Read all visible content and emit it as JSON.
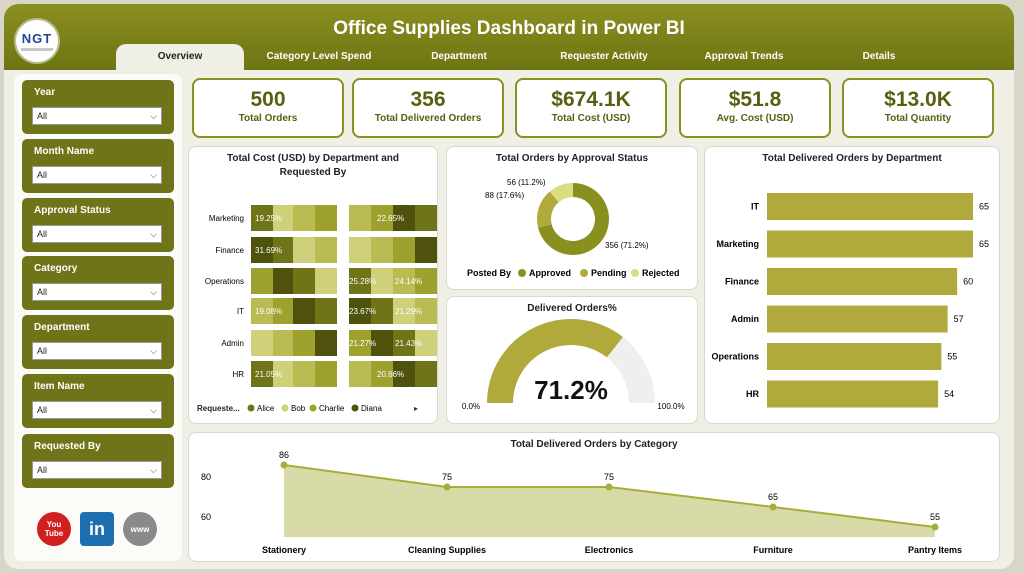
{
  "header": {
    "title": "Office Supplies Dashboard in Power BI",
    "logo_text": "NGT"
  },
  "tabs": [
    {
      "label": "Overview",
      "active": true
    },
    {
      "label": "Category Level Spend"
    },
    {
      "label": "Department"
    },
    {
      "label": "Requester Activity"
    },
    {
      "label": "Approval Trends"
    },
    {
      "label": "Details"
    }
  ],
  "filters": [
    {
      "label": "Year",
      "value": "All"
    },
    {
      "label": "Month Name",
      "value": "All"
    },
    {
      "label": "Approval Status",
      "value": "All"
    },
    {
      "label": "Category",
      "value": "All"
    },
    {
      "label": "Department",
      "value": "All"
    },
    {
      "label": "Item Name",
      "value": "All"
    },
    {
      "label": "Requested By",
      "value": "All"
    }
  ],
  "social": [
    {
      "icon": "youtube-icon",
      "text": "You Tube",
      "color": "#d02020"
    },
    {
      "icon": "linkedin-icon",
      "text": "in",
      "color": "#1d6fb0"
    },
    {
      "icon": "web-icon",
      "text": "www",
      "color": "#8a8a8a"
    }
  ],
  "kpis": [
    {
      "value": "500",
      "label": "Total Orders"
    },
    {
      "value": "356",
      "label": "Total Delivered Orders"
    },
    {
      "value": "$674.1K",
      "label": "Total Cost (USD)"
    },
    {
      "value": "$51.8",
      "label": "Avg. Cost (USD)"
    },
    {
      "value": "$13.0K",
      "label": "Total Quantity"
    }
  ],
  "colors": {
    "accent": "#8a9020",
    "dark": "#5f6410",
    "light": "#b0aa3c",
    "pale": "#d8dc8a",
    "area": "#d8dba8",
    "gauge_bg": "#efefef"
  },
  "charts": {
    "ribbon": {
      "title_line1": "Total Cost (USD) by Department and",
      "title_line2": "Requested By",
      "legend_label": "Requeste...",
      "legend": [
        "Alice",
        "Bob",
        "Charlie",
        "Diana"
      ],
      "legend_colors": [
        "#6f7418",
        "#cfd07a",
        "#9da22e",
        "#4e520c"
      ],
      "labels": [
        {
          "dept": "Marketing",
          "left": "19.25%",
          "right": "22.65%"
        },
        {
          "dept": "Finance",
          "left": "31.69%",
          "right": ""
        },
        {
          "dept": "Operations",
          "left": "",
          "right": "25.28%",
          "right2": "24.14%"
        },
        {
          "dept": "IT",
          "left": "19.08%",
          "right": "23.67%",
          "right2": "21.29%"
        },
        {
          "dept": "Admin",
          "left": "",
          "right": "21.27%",
          "right2": "21.43%"
        },
        {
          "dept": "HR",
          "left": "21.05%",
          "right": "20.66%"
        }
      ]
    },
    "donut": {
      "title": "Total Orders by Approval Status",
      "legend_title": "Posted By",
      "slices": [
        {
          "name": "Approved",
          "value": 356,
          "label": "356 (71.2%)",
          "color": "#8a9020"
        },
        {
          "name": "Pending",
          "value": 88,
          "label": "88 (17.6%)",
          "color": "#b0aa3c"
        },
        {
          "name": "Rejected",
          "value": 56,
          "label": "56 (11.2%)",
          "color": "#dcdd82"
        }
      ]
    },
    "gauge": {
      "title": "Delivered Orders%",
      "value": 71.2,
      "value_label": "71.2%",
      "min_label": "0.0%",
      "max_label": "100.0%"
    }
  },
  "chart_data": [
    {
      "type": "bar",
      "title": "Total Delivered Orders by Department",
      "categories": [
        "IT",
        "Marketing",
        "Finance",
        "Admin",
        "Operations",
        "HR"
      ],
      "values": [
        65,
        65,
        60,
        57,
        55,
        54
      ]
    },
    {
      "type": "area",
      "title": "Total Delivered Orders by Category",
      "categories": [
        "Stationery",
        "Cleaning Supplies",
        "Electronics",
        "Furniture",
        "Pantry Items"
      ],
      "values": [
        86,
        75,
        75,
        65,
        55
      ],
      "ytick_labels": [
        "80",
        "60"
      ],
      "yticks": [
        80,
        60
      ],
      "ylim": [
        50,
        90
      ]
    }
  ]
}
